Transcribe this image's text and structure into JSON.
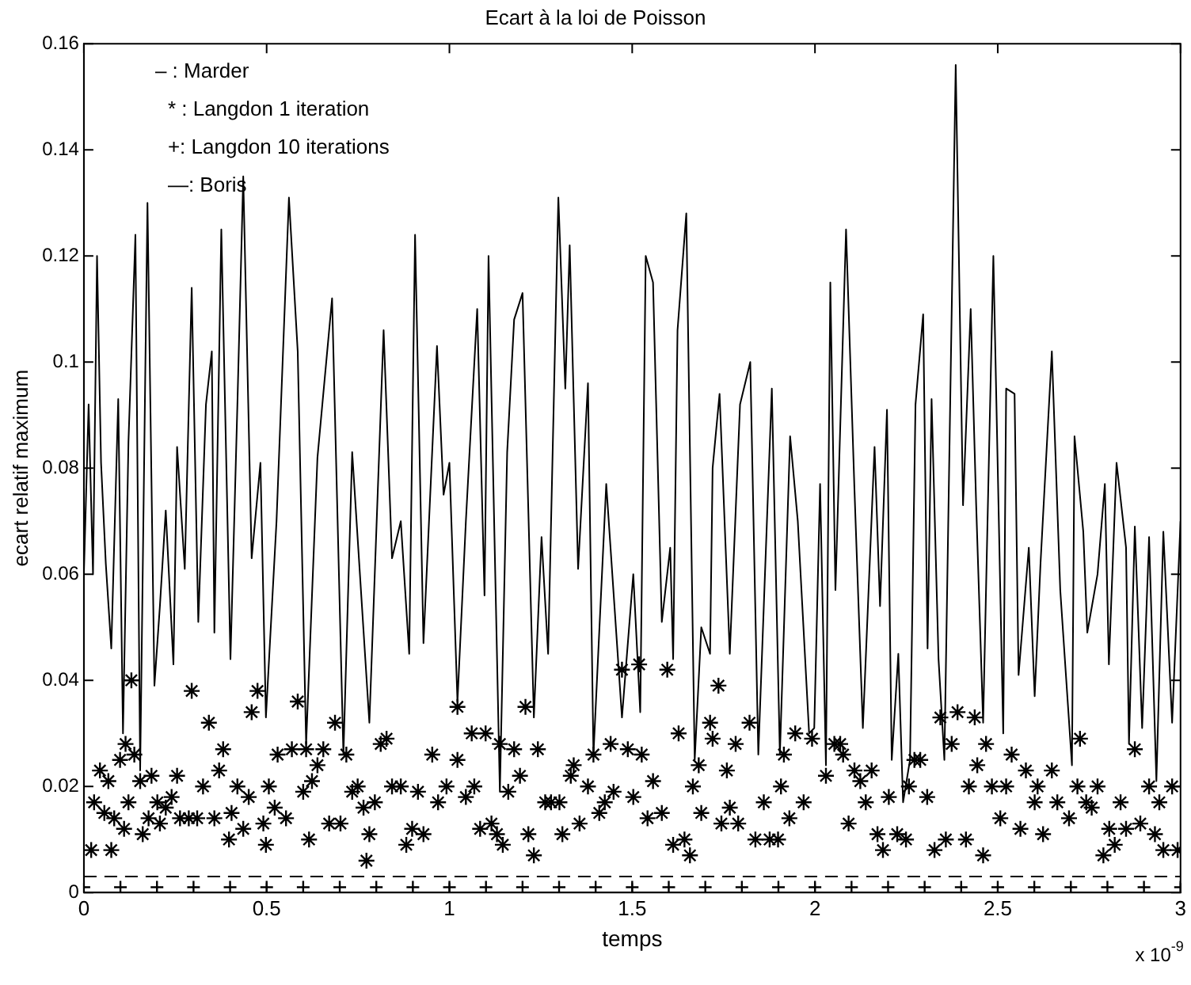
{
  "chart_data": {
    "type": "line",
    "title": "Ecart à la loi de Poisson",
    "xlabel": "temps",
    "ylabel": "ecart relatif maximum",
    "xlim": [
      0,
      3
    ],
    "xticks": [
      0,
      0.5,
      1,
      1.5,
      2,
      2.5,
      3
    ],
    "ylim": [
      0,
      0.16
    ],
    "yticks": [
      0,
      0.02,
      0.04,
      0.06,
      0.08,
      0.1,
      0.12,
      0.14,
      0.16
    ],
    "grid": false,
    "annotations": [
      "– : Marder",
      "* : Langdon 1 iteration",
      "+: Langdon 10 iterations",
      "—: Boris",
      "x 10$^{-9}$"
    ],
    "series": [
      {
        "type": "line",
        "color": "#000000",
        "marker": "none",
        "line_style": "solid",
        "x": [
          0,
          0.013,
          0.025,
          0.036,
          0.047,
          0.06,
          0.075,
          0.094,
          0.107,
          0.122,
          0.141,
          0.154,
          0.174,
          0.193,
          0.208,
          0.224,
          0.245,
          0.255,
          0.276,
          0.295,
          0.313,
          0.334,
          0.35,
          0.357,
          0.376,
          0.401,
          0.42,
          0.436,
          0.459,
          0.483,
          0.498,
          0.527,
          0.561,
          0.585,
          0.608,
          0.639,
          0.679,
          0.71,
          0.734,
          0.781,
          0.82,
          0.843,
          0.867,
          0.89,
          0.906,
          0.929,
          0.966,
          0.984,
          1,
          1.022,
          1.045,
          1.076,
          1.096,
          1.107,
          1.138,
          1.158,
          1.177,
          1.2,
          1.231,
          1.252,
          1.27,
          1.298,
          1.317,
          1.329,
          1.352,
          1.379,
          1.394,
          1.429,
          1.472,
          1.503,
          1.522,
          1.537,
          1.557,
          1.581,
          1.604,
          1.612,
          1.624,
          1.648,
          1.671,
          1.689,
          1.713,
          1.72,
          1.739,
          1.767,
          1.795,
          1.823,
          1.845,
          1.882,
          1.904,
          1.932,
          1.953,
          1.984,
          1.998,
          2.014,
          2.03,
          2.042,
          2.056,
          2.085,
          2.108,
          2.131,
          2.163,
          2.178,
          2.197,
          2.21,
          2.228,
          2.241,
          2.26,
          2.275,
          2.296,
          2.308,
          2.319,
          2.338,
          2.354,
          2.385,
          2.405,
          2.426,
          2.441,
          2.46,
          2.488,
          2.515,
          2.523,
          2.546,
          2.557,
          2.585,
          2.601,
          2.617,
          2.648,
          2.671,
          2.703,
          2.71,
          2.734,
          2.745,
          2.773,
          2.793,
          2.804,
          2.825,
          2.851,
          2.859,
          2.875,
          2.895,
          2.914,
          2.934,
          2.953,
          2.977,
          3
        ],
        "values": [
          0.06,
          0.092,
          0.06,
          0.12,
          0.081,
          0.062,
          0.046,
          0.093,
          0.03,
          0.085,
          0.124,
          0.023,
          0.13,
          0.039,
          0.054,
          0.072,
          0.043,
          0.084,
          0.061,
          0.114,
          0.051,
          0.092,
          0.102,
          0.049,
          0.125,
          0.044,
          0.092,
          0.135,
          0.063,
          0.081,
          0.033,
          0.07,
          0.131,
          0.102,
          0.028,
          0.082,
          0.112,
          0.026,
          0.083,
          0.032,
          0.106,
          0.063,
          0.07,
          0.045,
          0.124,
          0.047,
          0.103,
          0.075,
          0.081,
          0.036,
          0.07,
          0.11,
          0.056,
          0.12,
          0.019,
          0.083,
          0.108,
          0.113,
          0.033,
          0.067,
          0.045,
          0.131,
          0.095,
          0.122,
          0.061,
          0.096,
          0.026,
          0.077,
          0.033,
          0.06,
          0.034,
          0.12,
          0.115,
          0.051,
          0.065,
          0.044,
          0.106,
          0.128,
          0.025,
          0.05,
          0.045,
          0.08,
          0.094,
          0.045,
          0.092,
          0.1,
          0.026,
          0.095,
          0.026,
          0.086,
          0.07,
          0.03,
          0.031,
          0.077,
          0.024,
          0.115,
          0.057,
          0.125,
          0.076,
          0.031,
          0.084,
          0.054,
          0.091,
          0.025,
          0.045,
          0.017,
          0.025,
          0.092,
          0.109,
          0.046,
          0.093,
          0.044,
          0.025,
          0.156,
          0.073,
          0.11,
          0.073,
          0.032,
          0.12,
          0.03,
          0.095,
          0.094,
          0.041,
          0.065,
          0.037,
          0.062,
          0.102,
          0.057,
          0.024,
          0.086,
          0.068,
          0.049,
          0.06,
          0.077,
          0.043,
          0.081,
          0.065,
          0.028,
          0.069,
          0.031,
          0.067,
          0.021,
          0.068,
          0.032,
          0.07
        ]
      },
      {
        "type": "scatter",
        "color": "#000000",
        "x": [
          0.02,
          0.075,
          0.028,
          0.044,
          0.067,
          0.056,
          0.083,
          0.099,
          0.114,
          0.13,
          0.138,
          0.11,
          0.122,
          0.154,
          0.161,
          0.177,
          0.185,
          0.201,
          0.208,
          0.224,
          0.24,
          0.255,
          0.263,
          0.287,
          0.295,
          0.31,
          0.326,
          0.342,
          0.357,
          0.37,
          0.381,
          0.397,
          0.404,
          0.42,
          0.436,
          0.451,
          0.459,
          0.475,
          0.491,
          0.498,
          0.506,
          0.522,
          0.53,
          0.553,
          0.569,
          0.585,
          0.6,
          0.608,
          0.616,
          0.624,
          0.639,
          0.655,
          0.671,
          0.687,
          0.702,
          0.718,
          0.734,
          0.749,
          0.765,
          0.773,
          0.781,
          0.796,
          0.812,
          0.828,
          0.843,
          0.867,
          0.882,
          0.898,
          0.914,
          0.929,
          0.953,
          0.969,
          0.992,
          1.022,
          1.022,
          1.045,
          1.061,
          1.068,
          1.084,
          1.099,
          1.115,
          1.13,
          1.146,
          1.138,
          1.161,
          1.177,
          1.193,
          1.208,
          1.216,
          1.231,
          1.242,
          1.262,
          1.278,
          1.301,
          1.309,
          1.332,
          1.34,
          1.356,
          1.379,
          1.394,
          1.41,
          1.425,
          1.441,
          1.449,
          1.472,
          1.488,
          1.503,
          1.519,
          1.526,
          1.542,
          1.557,
          1.581,
          1.596,
          1.612,
          1.627,
          1.643,
          1.658,
          1.666,
          1.682,
          1.689,
          1.713,
          1.72,
          1.736,
          1.744,
          1.759,
          1.767,
          1.783,
          1.79,
          1.821,
          1.837,
          1.86,
          1.876,
          1.899,
          1.907,
          1.915,
          1.93,
          1.946,
          1.969,
          1.992,
          2.03,
          2.053,
          2.069,
          2.077,
          2.092,
          2.108,
          2.124,
          2.139,
          2.155,
          2.171,
          2.186,
          2.202,
          2.225,
          2.249,
          2.257,
          2.272,
          2.288,
          2.307,
          2.327,
          2.343,
          2.358,
          2.374,
          2.39,
          2.413,
          2.421,
          2.437,
          2.444,
          2.46,
          2.468,
          2.484,
          2.507,
          2.523,
          2.538,
          2.562,
          2.577,
          2.601,
          2.609,
          2.624,
          2.648,
          2.663,
          2.695,
          2.718,
          2.725,
          2.742,
          2.757,
          2.773,
          2.789,
          2.805,
          2.82,
          2.836,
          2.851,
          2.875,
          2.89,
          2.914,
          2.93,
          2.942,
          2.953,
          2.977,
          2.992
        ],
        "values": [
          0.008,
          0.008,
          0.017,
          0.023,
          0.021,
          0.015,
          0.014,
          0.025,
          0.028,
          0.04,
          0.026,
          0.012,
          0.017,
          0.021,
          0.011,
          0.014,
          0.022,
          0.017,
          0.013,
          0.016,
          0.018,
          0.022,
          0.014,
          0.014,
          0.038,
          0.014,
          0.02,
          0.032,
          0.014,
          0.023,
          0.027,
          0.01,
          0.015,
          0.02,
          0.012,
          0.018,
          0.034,
          0.038,
          0.013,
          0.009,
          0.02,
          0.016,
          0.026,
          0.014,
          0.027,
          0.036,
          0.019,
          0.027,
          0.01,
          0.021,
          0.024,
          0.027,
          0.013,
          0.032,
          0.013,
          0.026,
          0.019,
          0.02,
          0.016,
          0.006,
          0.011,
          0.017,
          0.028,
          0.029,
          0.02,
          0.02,
          0.009,
          0.012,
          0.019,
          0.011,
          0.026,
          0.017,
          0.02,
          0.035,
          0.025,
          0.018,
          0.03,
          0.02,
          0.012,
          0.03,
          0.013,
          0.011,
          0.009,
          0.028,
          0.019,
          0.027,
          0.022,
          0.035,
          0.011,
          0.007,
          0.027,
          0.017,
          0.017,
          0.017,
          0.011,
          0.022,
          0.024,
          0.013,
          0.02,
          0.026,
          0.015,
          0.017,
          0.028,
          0.019,
          0.042,
          0.027,
          0.018,
          0.043,
          0.026,
          0.014,
          0.021,
          0.015,
          0.042,
          0.009,
          0.03,
          0.01,
          0.007,
          0.02,
          0.024,
          0.015,
          0.032,
          0.029,
          0.039,
          0.013,
          0.023,
          0.016,
          0.028,
          0.013,
          0.032,
          0.01,
          0.017,
          0.01,
          0.01,
          0.02,
          0.026,
          0.014,
          0.03,
          0.017,
          0.029,
          0.022,
          0.028,
          0.028,
          0.026,
          0.013,
          0.023,
          0.021,
          0.017,
          0.023,
          0.011,
          0.008,
          0.018,
          0.011,
          0.01,
          0.02,
          0.025,
          0.025,
          0.018,
          0.008,
          0.033,
          0.01,
          0.028,
          0.034,
          0.01,
          0.02,
          0.033,
          0.024,
          0.007,
          0.028,
          0.02,
          0.014,
          0.02,
          0.026,
          0.012,
          0.023,
          0.017,
          0.02,
          0.011,
          0.023,
          0.017,
          0.014,
          0.02,
          0.029,
          0.017,
          0.016,
          0.02,
          0.007,
          0.012,
          0.009,
          0.017,
          0.012,
          0.027,
          0.013,
          0.02,
          0.011,
          0.017,
          0.008,
          0.02,
          0.008
        ]
      },
      {
        "type": "scatter",
        "color": "#000000",
        "marker": "cross",
        "x": [
          0,
          0.1,
          0.2,
          0.3,
          0.4,
          0.5,
          0.6,
          0.7,
          0.8,
          0.9,
          1,
          1.1,
          1.2,
          1.3,
          1.4,
          1.5,
          1.6,
          1.7,
          1.8,
          1.9,
          2,
          2.1,
          2.2,
          2.3,
          2.4,
          2.5,
          2.6,
          2.7,
          2.8,
          2.9,
          3
        ],
        "values": [
          0.001,
          0.001,
          0.001,
          0.001,
          0.001,
          0.001,
          0.001,
          0.001,
          0.001,
          0.001,
          0.001,
          0.001,
          0.001,
          0.001,
          0.001,
          0.001,
          0.001,
          0.001,
          0.001,
          0.001,
          0.001,
          0.001,
          0.001,
          0.001,
          0.001,
          0.001,
          0.001,
          0.001,
          0.001,
          0.001,
          0.001
        ]
      },
      {
        "type": "line",
        "color": "#000000",
        "marker": "none",
        "line_style": "dashed",
        "x": [
          0,
          0.5,
          1,
          1.5,
          2,
          2.5,
          3
        ],
        "values": [
          0.003,
          0.003,
          0.003,
          0.003,
          0.003,
          0.003,
          0.003
        ]
      }
    ]
  }
}
